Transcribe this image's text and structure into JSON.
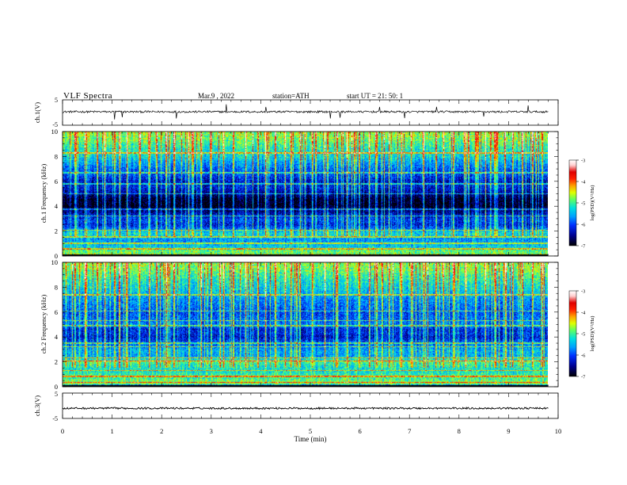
{
  "header": {
    "title": "VLF  Spectra",
    "date": "Mar.9   , 2022",
    "station": "station=ATH",
    "start": "start  UT  =    21: 50: 1"
  },
  "colors": {
    "colormap": [
      "#000000",
      "#000090",
      "#0030ff",
      "#00a0ff",
      "#00e0e0",
      "#60ff60",
      "#e0ff00",
      "#ffa000",
      "#ff2000",
      "#e00000",
      "#ffd0d0",
      "#ffffff"
    ],
    "trace": "#000000",
    "background": "#ffffff"
  },
  "chart_data": [
    {
      "type": "line",
      "name": "ch1-waveform",
      "ylabel": "ch.1(V)",
      "ylim": [
        -5,
        5
      ],
      "yticks": [
        5,
        -5
      ],
      "xlim": [
        0,
        10
      ],
      "data_end_min": 9.8,
      "baseline": 0.3,
      "noise_amplitude": 0.4,
      "sferic_spikes_min": [
        1.05,
        1.2,
        2.3,
        3.3,
        4.1,
        5.4,
        5.6,
        6.4,
        6.9,
        7.55,
        8.5,
        9.4
      ]
    },
    {
      "type": "heatmap",
      "name": "ch1-spectrogram",
      "ylabel": "ch.1  Frequency  (kHz)",
      "xlim": [
        0,
        10
      ],
      "ylim": [
        0,
        10
      ],
      "yticks": [
        0,
        2,
        4,
        6,
        8,
        10
      ],
      "data_end_min": 9.8,
      "colorbar": {
        "label": "log(PSD)(V²/Hz)",
        "range": [
          -7,
          -3
        ],
        "ticks": [
          -3,
          -4,
          -5,
          -6,
          -7
        ]
      },
      "psd_profile": {
        "freq_khz": [
          0.0,
          0.2,
          0.4,
          0.6,
          0.8,
          1.0,
          1.2,
          1.4,
          1.6,
          1.8,
          2.0,
          2.2,
          2.5,
          2.8,
          3.0,
          3.3,
          3.6,
          4.0,
          4.3,
          4.6,
          5.0,
          5.5,
          6.0,
          6.5,
          7.0,
          7.5,
          8.0,
          8.5,
          9.0,
          9.5,
          10.0
        ],
        "log_psd": [
          -7.0,
          -4.8,
          -4.9,
          -5.3,
          -5.4,
          -5.5,
          -5.6,
          -5.6,
          -5.4,
          -5.3,
          -5.5,
          -5.9,
          -6.2,
          -6.0,
          -6.1,
          -6.3,
          -6.6,
          -7.0,
          -6.9,
          -6.9,
          -6.5,
          -6.2,
          -6.3,
          -6.0,
          -5.9,
          -5.6,
          -5.3,
          -5.2,
          -5.0,
          -4.8,
          -4.7
        ]
      },
      "tone_lines_khz": [
        0.15,
        0.55,
        1.0,
        1.5,
        2.05,
        3.2,
        3.75,
        5.0,
        5.8,
        6.7,
        8.3
      ]
    },
    {
      "type": "heatmap",
      "name": "ch2-spectrogram",
      "ylabel": "ch.2  Frequency  (kHz)",
      "xlim": [
        0,
        10
      ],
      "ylim": [
        0,
        10
      ],
      "yticks": [
        0,
        2,
        4,
        6,
        8,
        10
      ],
      "data_end_min": 9.8,
      "colorbar": {
        "label": "log(PSD)(V²/Hz)",
        "range": [
          -7,
          -3
        ],
        "ticks": [
          -3,
          -4,
          -5,
          -6,
          -7
        ]
      },
      "psd_profile": {
        "freq_khz": [
          0.0,
          0.2,
          0.4,
          0.6,
          0.8,
          1.0,
          1.2,
          1.4,
          1.6,
          1.8,
          2.0,
          2.2,
          2.5,
          2.8,
          3.0,
          3.3,
          3.6,
          4.0,
          4.3,
          4.6,
          5.0,
          5.5,
          6.0,
          6.5,
          7.0,
          7.5,
          8.0,
          8.5,
          9.0,
          9.5,
          10.0
        ],
        "log_psd": [
          -7.0,
          -4.7,
          -4.8,
          -5.0,
          -5.0,
          -5.1,
          -5.2,
          -5.2,
          -5.2,
          -5.1,
          -4.9,
          -5.3,
          -5.6,
          -5.5,
          -5.6,
          -5.8,
          -6.0,
          -6.3,
          -6.1,
          -6.2,
          -5.8,
          -5.9,
          -6.0,
          -5.8,
          -5.7,
          -5.5,
          -5.3,
          -5.2,
          -5.0,
          -4.8,
          -4.7
        ]
      },
      "tone_lines_khz": [
        0.3,
        0.8,
        1.3,
        2.05,
        2.3,
        3.2,
        3.5,
        4.9,
        5.3,
        6.1,
        7.4
      ]
    },
    {
      "type": "line",
      "name": "ch3-waveform",
      "ylabel": "ch.3(V)",
      "ylim": [
        -5,
        5
      ],
      "yticks": [
        5,
        -5
      ],
      "xlim": [
        0,
        10
      ],
      "data_end_min": 9.8,
      "baseline": -1.0,
      "noise_amplitude": 0.35,
      "xlabel": "Time  (min)",
      "xticks": [
        0,
        1,
        2,
        3,
        4,
        5,
        6,
        7,
        8,
        9,
        10
      ]
    }
  ],
  "sferic_times_min": [
    0.25,
    0.45,
    0.7,
    0.85,
    1.05,
    1.15,
    1.3,
    1.55,
    1.75,
    1.9,
    2.1,
    2.25,
    2.55,
    2.8,
    3.0,
    3.25,
    3.45,
    3.7,
    3.95,
    4.1,
    4.3,
    4.5,
    4.8,
    5.05,
    5.3,
    5.55,
    5.75,
    6.0,
    6.2,
    6.35,
    6.6,
    6.85,
    7.05,
    7.3,
    7.55,
    7.7,
    7.9,
    8.15,
    8.35,
    8.55,
    8.75,
    8.95,
    9.1,
    9.3,
    9.5,
    9.7
  ]
}
